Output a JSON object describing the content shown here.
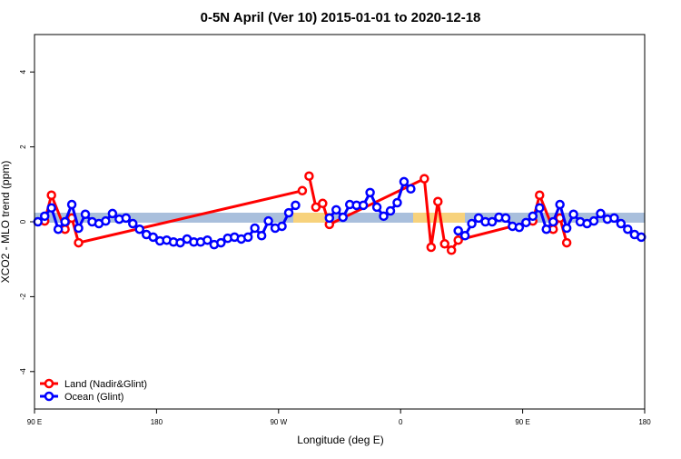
{
  "chart_data": {
    "type": "line",
    "title": "0-5N April (Ver 10)   2015-01-01 to 2020-12-18",
    "x_label": "Longitude (deg E)",
    "y_label": "XCO2 - MLO trend (ppm)",
    "xlim": [
      90,
      540
    ],
    "xticks": [
      {
        "value": 90,
        "label": "90 E"
      },
      180,
      {
        "value": 270,
        "label": "90 W"
      },
      {
        "value": 360,
        "label": "0"
      },
      {
        "value": 450,
        "label": "90 E"
      },
      {
        "value": 540,
        "label": "180"
      }
    ],
    "ylim": [
      -5,
      5
    ],
    "yticks": [
      -4,
      -2,
      0,
      2,
      4
    ],
    "legend": "bottom-left",
    "series": [
      {
        "name": "Land (Nadir&Glint)",
        "color": "#ff0000",
        "x": [
          97.5,
          102.5,
          112.5,
          117.5,
          122.5,
          287.5,
          null,
          292.5,
          297.5,
          302.5,
          307.5,
          377.5,
          382.5,
          387.5,
          392.5,
          397.5,
          402.5,
          457.5,
          462.5,
          472.5,
          477.5,
          482.5
        ],
        "values": [
          0.02,
          0.71,
          -0.2,
          0.1,
          -0.56,
          0.83,
          null,
          1.22,
          0.39,
          0.49,
          -0.07,
          1.15,
          -0.68,
          0.54,
          -0.59,
          -0.76,
          -0.49,
          0.02,
          0.71,
          -0.2,
          0.1,
          -0.56
        ]
      },
      {
        "name": "Ocean (Glint)",
        "color": "#0000ff",
        "x": [
          92.5,
          97.5,
          102.5,
          107.5,
          112.5,
          117.5,
          122.5,
          127.5,
          132.5,
          137.5,
          142.5,
          147.5,
          152.5,
          157.5,
          162.5,
          167.5,
          172.5,
          177.5,
          182.5,
          187.5,
          192.5,
          197.5,
          202.5,
          207.5,
          212.5,
          217.5,
          222.5,
          227.5,
          232.5,
          237.5,
          242.5,
          247.5,
          252.5,
          257.5,
          262.5,
          267.5,
          272.5,
          277.5,
          282.5,
          null,
          307.5,
          312.5,
          317.5,
          322.5,
          327.5,
          332.5,
          337.5,
          342.5,
          347.5,
          352.5,
          357.5,
          362.5,
          367.5,
          null,
          402.5,
          407.5,
          412.5,
          417.5,
          422.5,
          427.5,
          432.5,
          437.5,
          442.5,
          447.5,
          452.5,
          457.5,
          462.5,
          467.5,
          472.5,
          477.5,
          482.5,
          487.5,
          492.5,
          497.5,
          502.5,
          507.5,
          512.5,
          517.5,
          522.5,
          527.5,
          532.5,
          537.5
        ],
        "values": [
          0,
          0.15,
          0.37,
          -0.2,
          0,
          0.46,
          -0.17,
          0.2,
          0,
          -0.05,
          0.02,
          0.22,
          0.07,
          0.1,
          -0.05,
          -0.2,
          -0.34,
          -0.41,
          -0.51,
          -0.49,
          -0.54,
          -0.56,
          -0.46,
          -0.54,
          -0.54,
          -0.49,
          -0.61,
          -0.56,
          -0.44,
          -0.41,
          -0.46,
          -0.41,
          -0.17,
          -0.37,
          0.02,
          -0.17,
          -0.12,
          0.24,
          0.44,
          null,
          0.1,
          0.32,
          0.12,
          0.46,
          0.44,
          0.44,
          0.78,
          0.39,
          0.15,
          0.29,
          0.51,
          1.07,
          0.88,
          null,
          -0.24,
          -0.37,
          -0.05,
          0.1,
          0,
          0,
          0.12,
          0.1,
          -0.12,
          -0.15,
          -0.02,
          0.15,
          0.37,
          -0.2,
          0,
          0.46,
          -0.17,
          0.2,
          0,
          -0.05,
          0.02,
          0.22,
          0.07,
          0.1,
          -0.05,
          -0.2,
          -0.34,
          -0.41
        ]
      }
    ]
  }
}
